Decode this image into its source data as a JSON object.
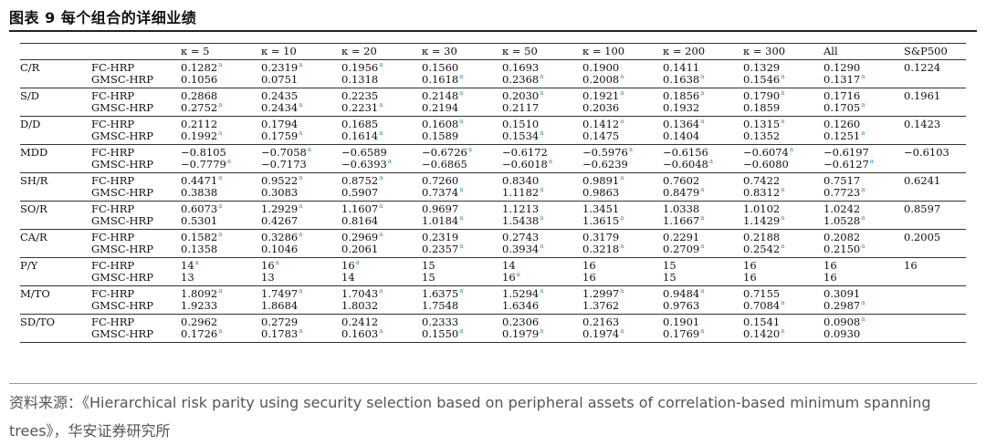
{
  "title": "图表 9  每个组合的详细业绩",
  "source": "资料来源：《Hierarchical risk parity using security selection based on peripheral    assets of correlation-based minimum spanning trees》，华安证券研究所",
  "columns": [
    "κ = 5",
    "κ = 10",
    "κ = 20",
    "κ = 30",
    "κ = 50",
    "κ = 100",
    "κ = 200",
    "κ = 300",
    "All",
    "S&P500"
  ],
  "methods": [
    "FC-HRP",
    "GMSC-HRP"
  ],
  "footnote_marker": "a",
  "accent_color": "#2d8fd0",
  "rows": [
    {
      "metric": "C/R",
      "fc": [
        [
          "0.1282",
          true
        ],
        [
          "0.2319",
          true
        ],
        [
          "0.1956",
          true
        ],
        [
          "0.1560",
          false
        ],
        [
          "0.1693",
          false
        ],
        [
          "0.1900",
          false
        ],
        [
          "0.1411",
          false
        ],
        [
          "0.1329",
          false
        ],
        [
          "0.1290",
          false
        ]
      ],
      "gmsc": [
        [
          "0.1056",
          false
        ],
        [
          "0.0751",
          false
        ],
        [
          "0.1318",
          false
        ],
        [
          "0.1618",
          true
        ],
        [
          "0.2368",
          true
        ],
        [
          "0.2008",
          true
        ],
        [
          "0.1638",
          true
        ],
        [
          "0.1546",
          true
        ],
        [
          "0.1317",
          true
        ]
      ],
      "sp": "0.1224"
    },
    {
      "metric": "S/D",
      "fc": [
        [
          "0.2868",
          false
        ],
        [
          "0.2435",
          false
        ],
        [
          "0.2235",
          false
        ],
        [
          "0.2148",
          true
        ],
        [
          "0.2030",
          true
        ],
        [
          "0.1921",
          true
        ],
        [
          "0.1856",
          true
        ],
        [
          "0.1790",
          true
        ],
        [
          "0.1716",
          false
        ]
      ],
      "gmsc": [
        [
          "0.2752",
          true
        ],
        [
          "0.2434",
          true
        ],
        [
          "0.2231",
          true
        ],
        [
          "0.2194",
          false
        ],
        [
          "0.2117",
          false
        ],
        [
          "0.2036",
          false
        ],
        [
          "0.1932",
          false
        ],
        [
          "0.1859",
          false
        ],
        [
          "0.1705",
          true
        ]
      ],
      "sp": "0.1961"
    },
    {
      "metric": "D/D",
      "fc": [
        [
          "0.2112",
          false
        ],
        [
          "0.1794",
          false
        ],
        [
          "0.1685",
          false
        ],
        [
          "0.1608",
          true
        ],
        [
          "0.1510",
          false
        ],
        [
          "0.1412",
          true
        ],
        [
          "0.1364",
          true
        ],
        [
          "0.1315",
          true
        ],
        [
          "0.1260",
          false
        ]
      ],
      "gmsc": [
        [
          "0.1992",
          true
        ],
        [
          "0.1759",
          true
        ],
        [
          "0.1614",
          true
        ],
        [
          "0.1589",
          false
        ],
        [
          "0.1534",
          true
        ],
        [
          "0.1475",
          false
        ],
        [
          "0.1404",
          false
        ],
        [
          "0.1352",
          false
        ],
        [
          "0.1251",
          true
        ]
      ],
      "sp": "0.1423"
    },
    {
      "metric": "MDD",
      "fc": [
        [
          "−0.8105",
          false
        ],
        [
          "−0.7058",
          true
        ],
        [
          "−0.6589",
          false
        ],
        [
          "−0.6726",
          true
        ],
        [
          "−0.6172",
          false
        ],
        [
          "−0.5976",
          true
        ],
        [
          "−0.6156",
          false
        ],
        [
          "−0.6074",
          true
        ],
        [
          "−0.6197",
          false
        ]
      ],
      "gmsc": [
        [
          "−0.7779",
          true
        ],
        [
          "−0.7173",
          false
        ],
        [
          "−0.6393",
          true
        ],
        [
          "−0.6865",
          false
        ],
        [
          "−0.6018",
          true
        ],
        [
          "−0.6239",
          false
        ],
        [
          "−0.6048",
          true
        ],
        [
          "−0.6080",
          false
        ],
        [
          "−0.6127",
          true
        ]
      ],
      "sp": "−0.6103"
    },
    {
      "metric": "SH/R",
      "fc": [
        [
          "0.4471",
          true
        ],
        [
          "0.9522",
          true
        ],
        [
          "0.8752",
          true
        ],
        [
          "0.7260",
          false
        ],
        [
          "0.8340",
          false
        ],
        [
          "0.9891",
          true
        ],
        [
          "0.7602",
          false
        ],
        [
          "0.7422",
          false
        ],
        [
          "0.7517",
          false
        ]
      ],
      "gmsc": [
        [
          "0.3838",
          false
        ],
        [
          "0.3083",
          false
        ],
        [
          "0.5907",
          false
        ],
        [
          "0.7374",
          true
        ],
        [
          "1.1182",
          true
        ],
        [
          "0.9863",
          false
        ],
        [
          "0.8479",
          true
        ],
        [
          "0.8312",
          true
        ],
        [
          "0.7723",
          true
        ]
      ],
      "sp": "0.6241"
    },
    {
      "metric": "SO/R",
      "fc": [
        [
          "0.6073",
          true
        ],
        [
          "1.2929",
          true
        ],
        [
          "1.1607",
          true
        ],
        [
          "0.9697",
          false
        ],
        [
          "1.1213",
          false
        ],
        [
          "1.3451",
          false
        ],
        [
          "1.0338",
          false
        ],
        [
          "1.0102",
          false
        ],
        [
          "1.0242",
          false
        ]
      ],
      "gmsc": [
        [
          "0.5301",
          false
        ],
        [
          "0.4267",
          false
        ],
        [
          "0.8164",
          false
        ],
        [
          "1.0184",
          true
        ],
        [
          "1.5438",
          true
        ],
        [
          "1.3615",
          true
        ],
        [
          "1.1667",
          true
        ],
        [
          "1.1429",
          true
        ],
        [
          "1.0528",
          true
        ]
      ],
      "sp": "0.8597"
    },
    {
      "metric": "CA/R",
      "fc": [
        [
          "0.1582",
          true
        ],
        [
          "0.3286",
          true
        ],
        [
          "0.2969",
          true
        ],
        [
          "0.2319",
          false
        ],
        [
          "0.2743",
          false
        ],
        [
          "0.3179",
          false
        ],
        [
          "0.2291",
          false
        ],
        [
          "0.2188",
          false
        ],
        [
          "0.2082",
          false
        ]
      ],
      "gmsc": [
        [
          "0.1358",
          false
        ],
        [
          "0.1046",
          false
        ],
        [
          "0.2061",
          false
        ],
        [
          "0.2357",
          true
        ],
        [
          "0.3934",
          true
        ],
        [
          "0.3218",
          true
        ],
        [
          "0.2709",
          true
        ],
        [
          "0.2542",
          true
        ],
        [
          "0.2150",
          true
        ]
      ],
      "sp": "0.2005"
    },
    {
      "metric": "P/Y",
      "fc": [
        [
          "14",
          true
        ],
        [
          "16",
          true
        ],
        [
          "16",
          true
        ],
        [
          "15",
          false
        ],
        [
          "14",
          false
        ],
        [
          "16",
          false
        ],
        [
          "15",
          false
        ],
        [
          "16",
          false
        ],
        [
          "16",
          false
        ]
      ],
      "gmsc": [
        [
          "13",
          false
        ],
        [
          "13",
          false
        ],
        [
          "14",
          false
        ],
        [
          "15",
          false
        ],
        [
          "16",
          true
        ],
        [
          "16",
          false
        ],
        [
          "15",
          false
        ],
        [
          "16",
          false
        ],
        [
          "16",
          false
        ]
      ],
      "sp": "16"
    },
    {
      "metric": "M/TO",
      "fc": [
        [
          "1.8092",
          true
        ],
        [
          "1.7497",
          true
        ],
        [
          "1.7043",
          true
        ],
        [
          "1.6375",
          true
        ],
        [
          "1.5294",
          true
        ],
        [
          "1.2997",
          true
        ],
        [
          "0.9484",
          true
        ],
        [
          "0.7155",
          false
        ],
        [
          "0.3091",
          false
        ]
      ],
      "gmsc": [
        [
          "1.9233",
          false
        ],
        [
          "1.8684",
          false
        ],
        [
          "1.8032",
          false
        ],
        [
          "1.7548",
          false
        ],
        [
          "1.6346",
          false
        ],
        [
          "1.3762",
          false
        ],
        [
          "0.9763",
          false
        ],
        [
          "0.7084",
          true
        ],
        [
          "0.2987",
          true
        ]
      ],
      "sp": ""
    },
    {
      "metric": "SD/TO",
      "fc": [
        [
          "0.2962",
          false
        ],
        [
          "0.2729",
          false
        ],
        [
          "0.2412",
          false
        ],
        [
          "0.2333",
          false
        ],
        [
          "0.2306",
          false
        ],
        [
          "0.2163",
          false
        ],
        [
          "0.1901",
          false
        ],
        [
          "0.1541",
          false
        ],
        [
          "0.0908",
          true
        ]
      ],
      "gmsc": [
        [
          "0.1726",
          true
        ],
        [
          "0.1783",
          true
        ],
        [
          "0.1603",
          true
        ],
        [
          "0.1550",
          true
        ],
        [
          "0.1979",
          true
        ],
        [
          "0.1974",
          true
        ],
        [
          "0.1769",
          true
        ],
        [
          "0.1420",
          true
        ],
        [
          "0.0930",
          false
        ]
      ],
      "sp": ""
    }
  ]
}
